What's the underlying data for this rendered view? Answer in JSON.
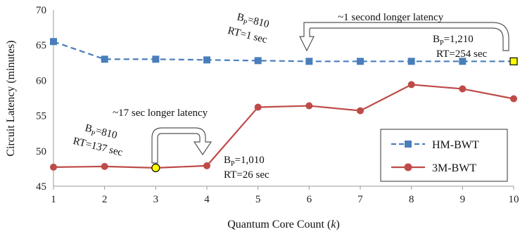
{
  "chart_data": {
    "type": "line",
    "xlabel": "Quantum Core Count (k)",
    "xlabel_main": "Quantum Core Count (",
    "xlabel_var": "k",
    "xlabel_close": ")",
    "ylabel": "Circuit Latency (minutes)",
    "x": [
      1,
      2,
      3,
      4,
      5,
      6,
      7,
      8,
      9,
      10
    ],
    "xlim": [
      1,
      10
    ],
    "ylim": [
      45,
      70
    ],
    "yticks": [
      45,
      50,
      55,
      60,
      65,
      70
    ],
    "grid": false,
    "legend_position": "bottom-right",
    "series": [
      {
        "name": "HM-BWT",
        "color": "#4a7ebb",
        "line_style": "dashed",
        "marker": "square",
        "values": [
          65.5,
          63.0,
          63.0,
          62.9,
          62.8,
          62.7,
          62.7,
          62.7,
          62.7,
          62.7
        ],
        "highlight_index": 9,
        "highlight_color": "#ffff00"
      },
      {
        "name": "3M-BWT",
        "color": "#be4b48",
        "line_style": "solid",
        "marker": "circle",
        "values": [
          47.7,
          47.8,
          47.6,
          47.9,
          56.2,
          56.4,
          55.7,
          59.4,
          58.8,
          57.4
        ],
        "highlight_index": 2,
        "highlight_color": "#ffff00"
      }
    ],
    "annotations": {
      "hm_left": {
        "bp_prefix": "B",
        "bp_sub": "P",
        "bp_value": "=810",
        "rt": "RT=1 sec"
      },
      "hm_right": {
        "bp_prefix": "B",
        "bp_sub": "P",
        "bp_value": "=1,210",
        "rt": "RT=254 sec"
      },
      "hm_arrow_label": "~1 second longer latency",
      "m3_left": {
        "bp_prefix": "B",
        "bp_sub": "P",
        "bp_value": "=810",
        "rt": "RT=137 sec"
      },
      "m3_right": {
        "bp_prefix": "B",
        "bp_sub": "P",
        "bp_value": "=1,010",
        "rt": "RT=26 sec"
      },
      "m3_arrow_label": "~17 sec longer latency"
    }
  }
}
